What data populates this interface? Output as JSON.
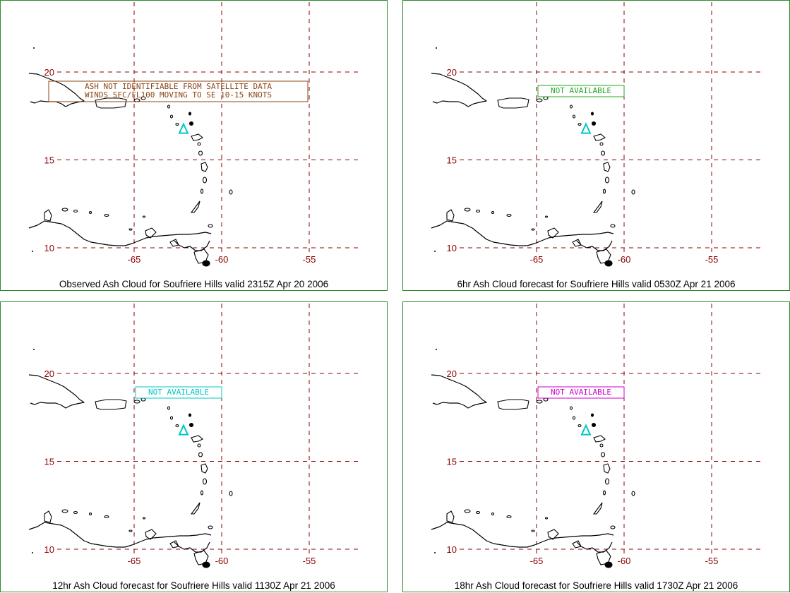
{
  "panels": [
    {
      "caption": "Observed Ash Cloud for Soufriere  Hills valid 2315Z Apr 20 2006",
      "message_lines": [
        "ASH NOT IDENTIFIABLE FROM SATELLITE DATA",
        "WINDS SFC/FL100 MOVING TO SE 10-15 KNOTS"
      ],
      "message_color": "#8b4513",
      "volcano_color": "#00c8c8"
    },
    {
      "caption": "6hr Ash Cloud forecast for Soufriere  Hills valid 0530Z Apr 21 2006",
      "message_lines": [
        "NOT AVAILABLE"
      ],
      "message_color": "#22aa22",
      "volcano_color": "#00c8c8"
    },
    {
      "caption": "12hr Ash Cloud forecast for Soufriere  Hills valid 1130Z Apr 21 2006",
      "message_lines": [
        "NOT AVAILABLE"
      ],
      "message_color": "#00c8c8",
      "volcano_color": "#00c8c8"
    },
    {
      "caption": "18hr Ash Cloud forecast for Soufriere  Hills valid 1730Z Apr 21 2006",
      "message_lines": [
        "NOT AVAILABLE"
      ],
      "message_color": "#cc00cc",
      "volcano_color": "#00c8c8"
    }
  ],
  "latitude_labels": [
    "20",
    "15",
    "10"
  ],
  "longitude_labels": [
    "-65",
    "-60",
    "-55"
  ],
  "volcano": {
    "name": "Soufriere Hills",
    "lat": 16.72,
    "lon": -62.18,
    "icon": "triangle-volcano-icon"
  },
  "colors": {
    "grid": "#8b0000",
    "frame": "#2e8b2e",
    "coast": "#000000"
  }
}
